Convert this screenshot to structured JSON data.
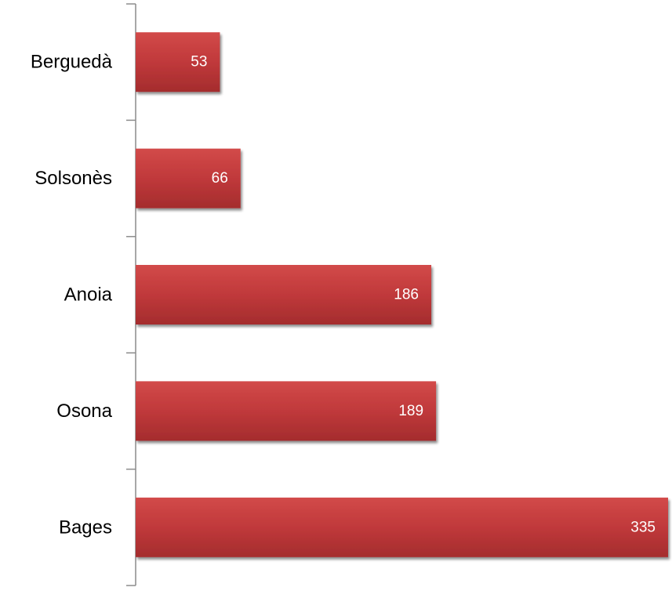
{
  "chart_data": {
    "type": "bar",
    "orientation": "horizontal",
    "categories": [
      "Berguedà",
      "Solsonès",
      "Anoia",
      "Osona",
      "Bages"
    ],
    "values": [
      53,
      66,
      186,
      189,
      335
    ],
    "data_labels": [
      "53",
      "66",
      "186",
      "189",
      "335"
    ],
    "title": "",
    "xlabel": "",
    "ylabel": "",
    "xlim": [
      0,
      335
    ],
    "grid": false,
    "legend": "none",
    "colors": {
      "bar": "#c0393b",
      "bar_highlight": "#d24a49",
      "bar_shadow": "#8f2526",
      "axis": "#8c8c8c",
      "label_text": "#000000",
      "value_text": "#ffffff"
    }
  }
}
